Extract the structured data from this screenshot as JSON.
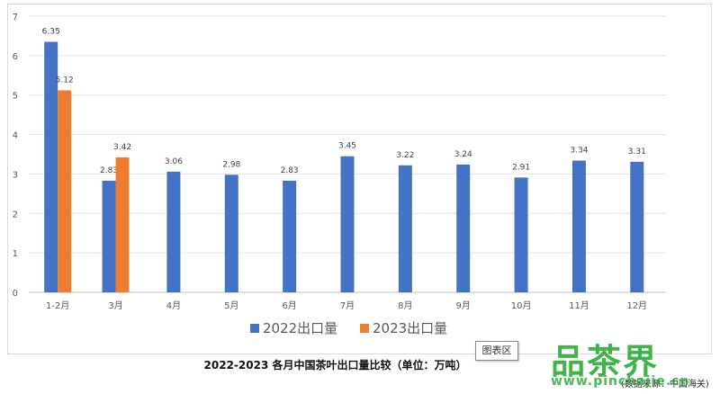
{
  "chart_data": {
    "type": "bar",
    "title": "2022-2023 各月中国茶叶出口量比较（单位：万吨）",
    "source_note": "(数据来源：中国海关)",
    "categories": [
      "1-2月",
      "3月",
      "4月",
      "5月",
      "6月",
      "7月",
      "8月",
      "9月",
      "10月",
      "11月",
      "12月"
    ],
    "series": [
      {
        "name": "2022出口量",
        "color": "#4472c4",
        "values": [
          6.35,
          2.83,
          3.06,
          2.98,
          2.83,
          3.45,
          3.22,
          3.24,
          2.91,
          3.34,
          3.31
        ]
      },
      {
        "name": "2023出口量",
        "color": "#ed7d31",
        "values": [
          5.12,
          3.42,
          null,
          null,
          null,
          null,
          null,
          null,
          null,
          null,
          null
        ]
      }
    ],
    "ylim": [
      0,
      7
    ],
    "yticks": [
      0,
      1,
      2,
      3,
      4,
      5,
      6,
      7
    ],
    "grid": true,
    "legend_position": "bottom"
  },
  "tooltip": {
    "label": "图表区"
  },
  "watermark": {
    "brand": "品茶界",
    "url": "www.pinchajie.cn"
  }
}
